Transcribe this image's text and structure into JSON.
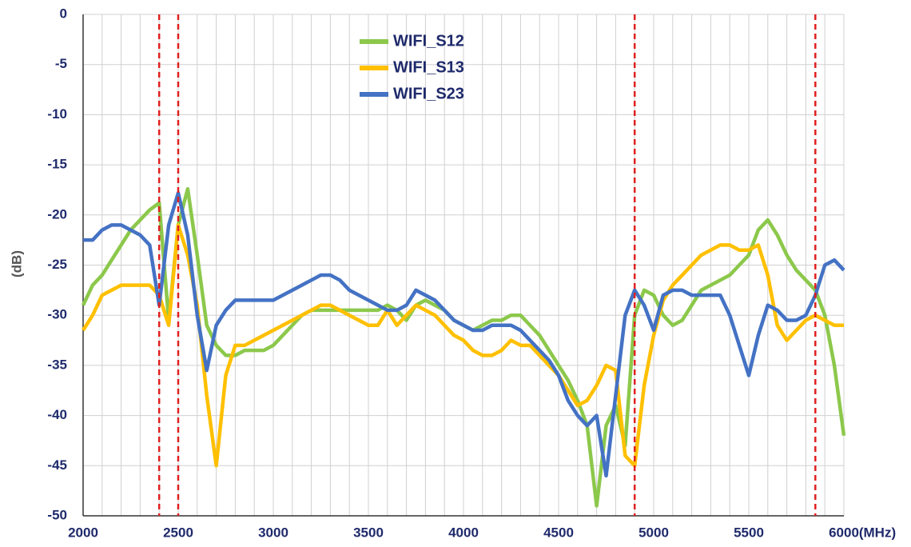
{
  "chart_data": {
    "type": "line",
    "x_label": "(MHz)",
    "y_label": "(dB)",
    "xlim": [
      2000,
      6000
    ],
    "ylim": [
      -50,
      0
    ],
    "xticks": [
      2000,
      2500,
      3000,
      3500,
      4000,
      4500,
      5000,
      5500,
      6000
    ],
    "yticks": [
      0,
      -5,
      -10,
      -15,
      -20,
      -25,
      -30,
      -35,
      -40,
      -45,
      -50
    ],
    "x_grid_step": 100,
    "grid": true,
    "legend": "upper center",
    "vlines": [
      2400,
      2500,
      4900,
      5850
    ],
    "vline_color": "#e02020",
    "x": [
      2000,
      2050,
      2100,
      2150,
      2200,
      2250,
      2300,
      2350,
      2400,
      2450,
      2500,
      2550,
      2600,
      2650,
      2700,
      2750,
      2800,
      2850,
      2900,
      2950,
      3000,
      3050,
      3100,
      3150,
      3200,
      3250,
      3300,
      3350,
      3400,
      3450,
      3500,
      3550,
      3600,
      3650,
      3700,
      3750,
      3800,
      3850,
      3900,
      3950,
      4000,
      4050,
      4100,
      4150,
      4200,
      4250,
      4300,
      4350,
      4400,
      4450,
      4500,
      4550,
      4600,
      4650,
      4700,
      4750,
      4800,
      4850,
      4900,
      4950,
      5000,
      5050,
      5100,
      5150,
      5200,
      5250,
      5300,
      5350,
      5400,
      5450,
      5500,
      5550,
      5600,
      5650,
      5700,
      5750,
      5800,
      5850,
      5900,
      5950,
      6000
    ],
    "series": [
      {
        "name": "WIFI_S12",
        "color": "#8cc84b",
        "values": [
          -29,
          -27,
          -26,
          -24.5,
          -23,
          -21.5,
          -20.5,
          -19.5,
          -18.8,
          -30.5,
          -21,
          -17.4,
          -24,
          -31,
          -33,
          -34,
          -34,
          -33.5,
          -33.5,
          -33.5,
          -33,
          -32,
          -31,
          -30,
          -29.5,
          -29.5,
          -29.5,
          -29.5,
          -29.5,
          -29.5,
          -29.5,
          -29.5,
          -29,
          -29.5,
          -30.5,
          -29,
          -28.5,
          -29,
          -29.5,
          -30.5,
          -31,
          -31.5,
          -31,
          -30.5,
          -30.5,
          -30,
          -30,
          -31,
          -32,
          -33.5,
          -35,
          -36.5,
          -38.5,
          -41,
          -49,
          -41,
          -39,
          -43,
          -30,
          -27.5,
          -28,
          -30,
          -31,
          -30.5,
          -29,
          -27.5,
          -27,
          -26.5,
          -26,
          -25,
          -24,
          -21.5,
          -20.5,
          -22,
          -24,
          -25.5,
          -26.5,
          -27.5,
          -30,
          -35,
          -42
        ]
      },
      {
        "name": "WIFI_S13",
        "color": "#ffc000",
        "values": [
          -31.5,
          -30,
          -28,
          -27.5,
          -27,
          -27,
          -27,
          -27,
          -28,
          -31,
          -21,
          -24,
          -29,
          -38,
          -45,
          -36,
          -33,
          -33,
          -32.5,
          -32,
          -31.5,
          -31,
          -30.5,
          -30,
          -29.5,
          -29,
          -29,
          -29.5,
          -30,
          -30.5,
          -31,
          -31,
          -29.5,
          -31,
          -30,
          -29,
          -29.5,
          -30,
          -31,
          -32,
          -32.5,
          -33.5,
          -34,
          -34,
          -33.5,
          -32.5,
          -33,
          -33,
          -34,
          -35,
          -36,
          -37.5,
          -39,
          -38.5,
          -37,
          -35,
          -35.5,
          -44,
          -45,
          -37,
          -32,
          -28.5,
          -27,
          -26,
          -25,
          -24,
          -23.5,
          -23,
          -23,
          -23.5,
          -23.5,
          -23,
          -26,
          -31,
          -32.5,
          -31.5,
          -30.5,
          -30,
          -30.5,
          -31,
          -31
        ]
      },
      {
        "name": "WIFI_S23",
        "color": "#4472c4",
        "values": [
          -22.5,
          -22.5,
          -21.5,
          -21,
          -21,
          -21.5,
          -22,
          -23,
          -29,
          -21,
          -17.8,
          -22,
          -30,
          -35.5,
          -31,
          -29.5,
          -28.5,
          -28.5,
          -28.5,
          -28.5,
          -28.5,
          -28,
          -27.5,
          -27,
          -26.5,
          -26,
          -26,
          -26.5,
          -27.5,
          -28,
          -28.5,
          -29,
          -29.5,
          -29.5,
          -29,
          -27.5,
          -28,
          -28.5,
          -29.5,
          -30.5,
          -31,
          -31.5,
          -31.5,
          -31,
          -31,
          -31,
          -31.5,
          -32.5,
          -33.5,
          -34.5,
          -36,
          -38.5,
          -40,
          -41,
          -40,
          -46,
          -38,
          -30,
          -27.5,
          -29,
          -31.5,
          -28,
          -27.5,
          -27.5,
          -28,
          -28,
          -28,
          -28,
          -30,
          -33,
          -36,
          -32,
          -29,
          -29.5,
          -30.5,
          -30.5,
          -30,
          -28,
          -25,
          -24.5,
          -25.5
        ]
      }
    ]
  }
}
